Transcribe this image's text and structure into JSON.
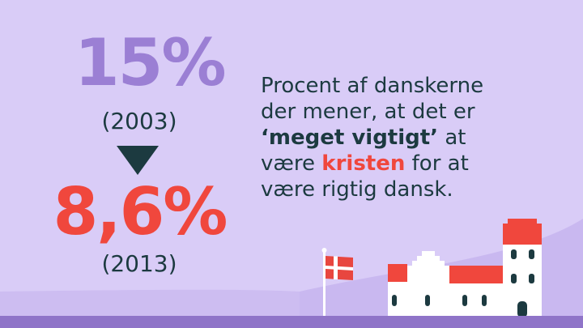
{
  "stat_2003": {
    "value": "15%",
    "year": "(2003)"
  },
  "stat_2013": {
    "value": "8,6%",
    "year": "(2013)"
  },
  "description": {
    "line1": "Procent af danskerne",
    "line2": "der mener, at det er",
    "emphasis": "‘meget vigtigt’",
    "line3_suffix": " at",
    "line4_prefix": "være ",
    "highlight": "kristen",
    "line4_suffix": " for at",
    "line5": "være rigtig dansk."
  },
  "colors": {
    "background": "#d9ccf7",
    "stat_2003": "#9b7fd4",
    "stat_2013": "#f0473d",
    "text": "#1c3a40",
    "ground": "#8f74c8"
  },
  "icons": [
    "down-arrow-icon",
    "danish-flag-icon",
    "church-illustration"
  ]
}
